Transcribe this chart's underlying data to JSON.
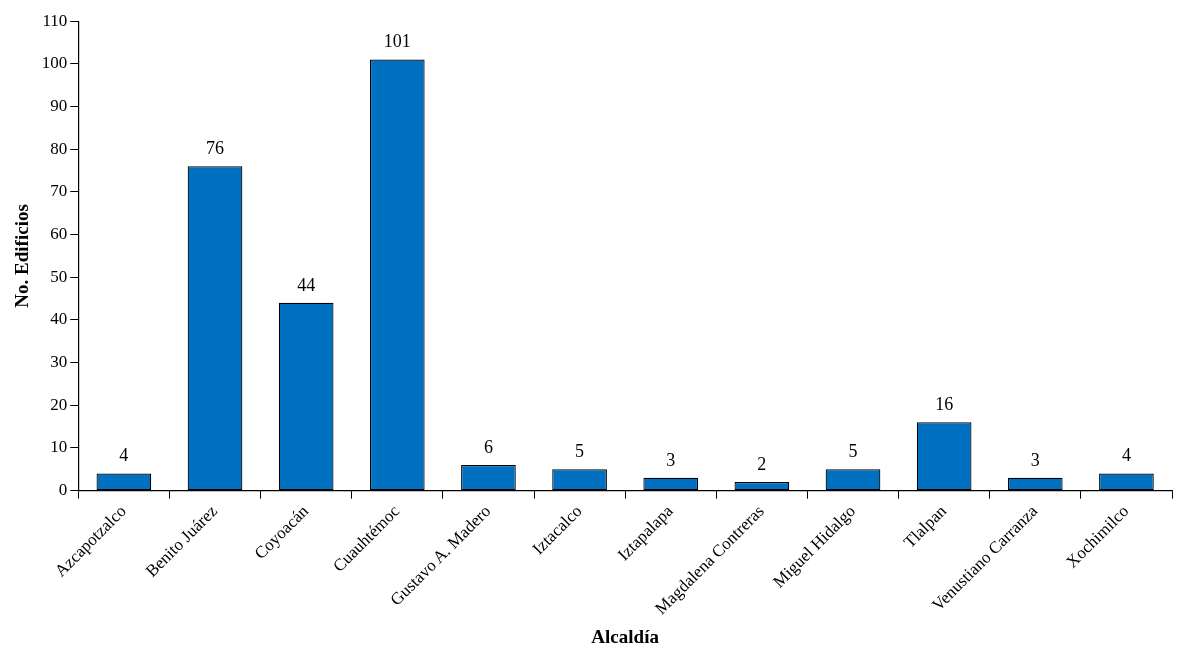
{
  "chart_data": {
    "type": "bar",
    "xlabel": "Alcaldía",
    "ylabel": "No. Edificios",
    "categories": [
      "Azcapotzalco",
      "Benito Juárez",
      "Coyoacán",
      "Cuauhtémoc",
      "Gustavo A. Madero",
      "Iztacalco",
      "Iztapalapa",
      "Magdalena Contreras",
      "Miguel Hidalgo",
      "Tlalpan",
      "Venustiano Carranza",
      "Xochimilco"
    ],
    "values": [
      4,
      76,
      44,
      101,
      6,
      5,
      3,
      2,
      5,
      16,
      3,
      4
    ],
    "color": "#0070c0",
    "ylim": [
      0,
      110
    ],
    "yticks": [
      0,
      10,
      20,
      30,
      40,
      50,
      60,
      70,
      80,
      90,
      100,
      110
    ],
    "data_labels": true,
    "grid": false,
    "legend": false
  }
}
